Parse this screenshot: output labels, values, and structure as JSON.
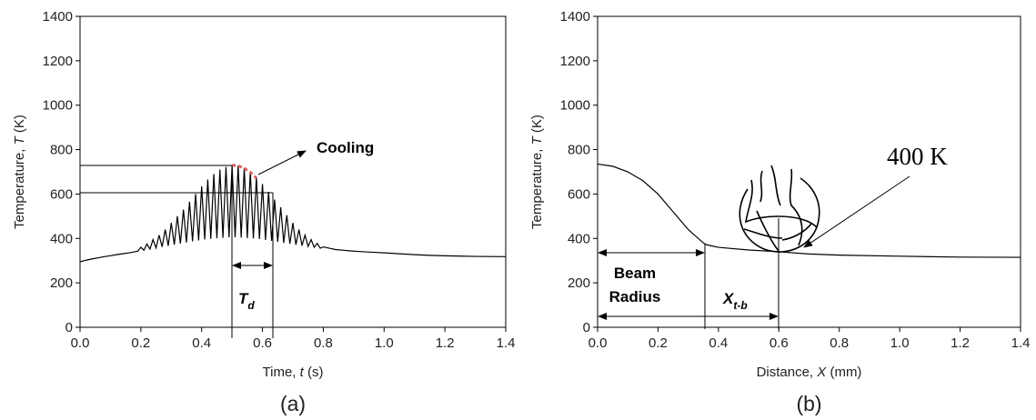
{
  "chart_data": [
    {
      "type": "line",
      "caption": "(a)",
      "x_label": [
        "Time, ",
        "t",
        " (s)"
      ],
      "y_label": [
        "Temperature, ",
        "T",
        " (K)"
      ],
      "xlim": [
        0,
        1.4
      ],
      "ylim": [
        0,
        1400
      ],
      "xticks": [
        {
          "value": 0,
          "label": "0.0"
        },
        0.2,
        0.4,
        0.6,
        0.8,
        {
          "value": 1,
          "label": "1.0"
        },
        1.2,
        1.4
      ],
      "yticks": [
        0,
        200,
        400,
        600,
        800,
        1000,
        1200,
        1400
      ],
      "annotations": {
        "cooling": "Cooling",
        "duration": {
          "text": "T",
          "subscript": "d"
        }
      },
      "series": [
        {
          "color": "#000000",
          "x": [
            0,
            0.02,
            0.04,
            0.06,
            0.08,
            0.1,
            0.12,
            0.14,
            0.16,
            0.18,
            0.19,
            0.2,
            0.21,
            0.22,
            0.23,
            0.24,
            0.25,
            0.26,
            0.27,
            0.28,
            0.29,
            0.3,
            0.31,
            0.32,
            0.33,
            0.34,
            0.35,
            0.36,
            0.37,
            0.38,
            0.39,
            0.4,
            0.41,
            0.42,
            0.43,
            0.44,
            0.45,
            0.46,
            0.47,
            0.48,
            0.49,
            0.5,
            0.51,
            0.52,
            0.53,
            0.54,
            0.55,
            0.56,
            0.57,
            0.58,
            0.59,
            0.6,
            0.61,
            0.62,
            0.63,
            0.64,
            0.65,
            0.66,
            0.67,
            0.68,
            0.69,
            0.7,
            0.71,
            0.72,
            0.73,
            0.74,
            0.75,
            0.76,
            0.77,
            0.78,
            0.79,
            0.8,
            0.84,
            0.88,
            0.92,
            0.96,
            1.0,
            1.05,
            1.1,
            1.15,
            1.2,
            1.3,
            1.4
          ],
          "values": [
            295,
            302,
            308,
            313,
            318,
            322,
            327,
            331,
            335,
            340,
            343,
            360,
            347,
            375,
            352,
            395,
            357,
            415,
            362,
            440,
            367,
            470,
            372,
            500,
            377,
            530,
            382,
            565,
            387,
            600,
            391,
            635,
            395,
            665,
            398,
            690,
            401,
            710,
            403,
            722,
            405,
            730,
            405,
            728,
            404,
            718,
            402,
            700,
            400,
            675,
            397,
            645,
            393,
            610,
            389,
            575,
            385,
            540,
            380,
            505,
            376,
            470,
            372,
            440,
            368,
            415,
            364,
            395,
            360,
            378,
            356,
            362,
            350,
            345,
            341,
            338,
            335,
            331,
            327,
            324,
            322,
            319,
            318
          ]
        },
        {
          "color": "#e06060",
          "dash": true,
          "x": [
            0.5,
            0.52,
            0.54,
            0.56,
            0.58
          ],
          "values": [
            730,
            727,
            716,
            698,
            672
          ]
        }
      ]
    },
    {
      "type": "line",
      "caption": "(b)",
      "x_label": [
        "Distance, ",
        "X",
        " (mm)"
      ],
      "y_label": [
        "Temperature, ",
        "T",
        " (K)"
      ],
      "xlim": [
        0,
        1.4
      ],
      "ylim": [
        0,
        1400
      ],
      "xticks": [
        {
          "value": 0,
          "label": "0.0"
        },
        0.2,
        0.4,
        0.6,
        0.8,
        {
          "value": 1,
          "label": "1.0"
        },
        1.2,
        1.4
      ],
      "yticks": [
        0,
        200,
        400,
        600,
        800,
        1000,
        1200,
        1400
      ],
      "annotations": {
        "beam_radius": [
          "Beam",
          "Radius"
        ],
        "distance": {
          "text": "X",
          "subscript": "t-b"
        },
        "threshold": "400 K"
      },
      "series": [
        {
          "color": "#000000",
          "x": [
            0,
            0.05,
            0.1,
            0.15,
            0.2,
            0.25,
            0.3,
            0.35,
            0.36,
            0.4,
            0.5,
            0.6,
            0.7,
            0.8,
            1.0,
            1.2,
            1.4
          ],
          "values": [
            735,
            725,
            700,
            660,
            600,
            520,
            440,
            380,
            372,
            360,
            348,
            340,
            330,
            325,
            320,
            316,
            315
          ]
        }
      ]
    }
  ]
}
